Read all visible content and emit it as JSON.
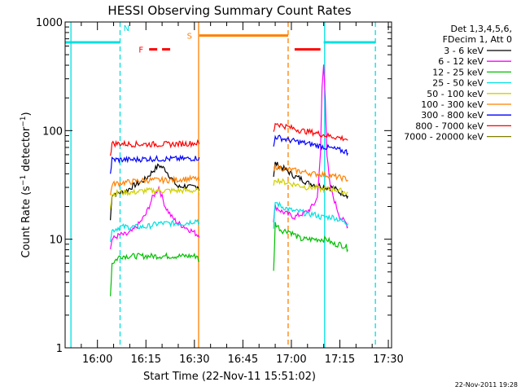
{
  "chart_data": {
    "type": "line",
    "title": "HESSI Observing Summary Count Rates",
    "xlabel": "Start Time (22-Nov-11 15:51:02)",
    "ylabel": "Count Rate (s⁻¹ detector⁻¹)",
    "ylabel_main": "Count Rate (s",
    "ylabel_sup1": "−1",
    "ylabel_mid": " detector",
    "ylabel_sup2": "−1",
    "ylabel_end": ")",
    "yscale": "log",
    "ylim": [
      1,
      1000
    ],
    "xlim_minutes": [
      -1,
      100
    ],
    "x_ticks": [
      {
        "m": 9,
        "label": "16:00"
      },
      {
        "m": 24,
        "label": "16:15"
      },
      {
        "m": 39,
        "label": "16:30"
      },
      {
        "m": 54,
        "label": "16:45"
      },
      {
        "m": 69,
        "label": "17:00"
      },
      {
        "m": 84,
        "label": "17:15"
      },
      {
        "m": 99,
        "label": "17:30"
      }
    ],
    "y_ticks": [
      {
        "v": 1,
        "label": "1"
      },
      {
        "v": 10,
        "label": "10"
      },
      {
        "v": 100,
        "label": "100"
      },
      {
        "v": 1000,
        "label": "1000"
      }
    ],
    "legend_position": "right",
    "legend_header": [
      "Det 1,3,4,5,6,",
      "FDecim 1, Att 0"
    ],
    "series": [
      {
        "name": "3 - 6 keV",
        "color": "#000000",
        "x": [
          13,
          13.5,
          16,
          18,
          20,
          22,
          24,
          26,
          28,
          30,
          32,
          34,
          36,
          38,
          40,
          40.5,
          63.5,
          64,
          66,
          68,
          70,
          72,
          74,
          76,
          78,
          80,
          82,
          84,
          86,
          86.5
        ],
        "y": [
          15,
          26,
          27,
          28,
          31,
          33,
          36,
          42,
          48,
          44,
          36,
          30,
          31,
          30,
          31,
          29,
          38,
          50,
          46,
          42,
          38,
          36,
          33,
          32,
          31,
          30,
          30,
          27,
          26,
          25
        ]
      },
      {
        "name": "6 - 12 keV",
        "color": "#ff00ff",
        "x": [
          13,
          13.5,
          16,
          18,
          20,
          22,
          24,
          26,
          28,
          30,
          32,
          34,
          36,
          38,
          40,
          40.5,
          63.5,
          64,
          66,
          68,
          70,
          72,
          74,
          76,
          77,
          78,
          78.5,
          79,
          79.5,
          80,
          81,
          84,
          86,
          86.5
        ],
        "y": [
          8,
          10,
          11,
          11,
          12,
          14,
          17,
          24,
          30,
          20,
          16,
          14,
          13,
          12,
          11,
          11,
          15,
          20,
          18,
          17,
          16,
          17,
          18,
          21,
          24,
          60,
          250,
          400,
          200,
          60,
          30,
          16,
          14,
          13
        ]
      },
      {
        "name": "12 - 25 keV",
        "color": "#00c000",
        "x": [
          13,
          13.5,
          16,
          20,
          24,
          28,
          32,
          36,
          40,
          40.5,
          63.5,
          64,
          66,
          68,
          70,
          72,
          74,
          76,
          78,
          80,
          82,
          84,
          86,
          86.5
        ],
        "y": [
          3,
          6,
          7,
          7,
          7,
          7,
          7,
          7,
          7,
          6,
          5,
          14,
          12,
          12,
          11,
          10,
          10,
          10,
          10,
          10,
          9,
          9,
          8.5,
          8
        ]
      },
      {
        "name": "25 - 50 keV",
        "color": "#00e0e0",
        "x": [
          13,
          13.5,
          16,
          20,
          24,
          28,
          32,
          36,
          40,
          40.5,
          63.5,
          64,
          66,
          68,
          70,
          72,
          74,
          76,
          78,
          80,
          82,
          84,
          86,
          86.5
        ],
        "y": [
          10,
          12,
          13,
          13,
          13,
          14,
          14,
          14,
          15,
          14,
          12,
          22,
          20,
          19,
          18,
          18,
          17,
          17,
          16,
          16,
          16,
          15,
          14,
          14
        ]
      },
      {
        "name": "50 - 100 keV",
        "color": "#d0d000",
        "x": [
          13,
          13.5,
          16,
          20,
          24,
          28,
          32,
          36,
          40,
          40.5,
          63.5,
          64,
          66,
          68,
          70,
          72,
          74,
          76,
          78,
          80,
          82,
          84,
          86,
          86.5
        ],
        "y": [
          20,
          26,
          27,
          27,
          28,
          28,
          28,
          28,
          28,
          27,
          30,
          36,
          34,
          33,
          32,
          31,
          30,
          30,
          29,
          29,
          29,
          28,
          27,
          27
        ]
      },
      {
        "name": "100 - 300 keV",
        "color": "#ff8000",
        "x": [
          13,
          13.5,
          16,
          20,
          24,
          28,
          32,
          36,
          40,
          40.5,
          63.5,
          64,
          66,
          68,
          70,
          72,
          74,
          76,
          78,
          80,
          82,
          84,
          86,
          86.5
        ],
        "y": [
          25,
          32,
          33,
          34,
          35,
          35,
          35,
          36,
          36,
          35,
          40,
          47,
          45,
          44,
          43,
          42,
          41,
          40,
          40,
          39,
          38,
          37,
          36,
          35
        ]
      },
      {
        "name": "300 - 800 keV",
        "color": "#0000ff",
        "x": [
          13,
          13.5,
          16,
          20,
          24,
          28,
          32,
          36,
          40,
          40.5,
          63.5,
          64,
          66,
          68,
          70,
          72,
          74,
          76,
          78,
          80,
          82,
          84,
          86,
          86.5
        ],
        "y": [
          40,
          54,
          54,
          54,
          55,
          55,
          55,
          55,
          56,
          55,
          70,
          88,
          85,
          82,
          80,
          78,
          76,
          74,
          72,
          70,
          68,
          66,
          64,
          62
        ]
      },
      {
        "name": "800 - 7000 keV",
        "color": "#ff0000",
        "x": [
          13,
          13.5,
          16,
          20,
          24,
          28,
          32,
          36,
          40,
          40.5,
          63.5,
          64,
          66,
          68,
          70,
          72,
          74,
          76,
          78,
          80,
          82,
          84,
          86,
          86.5
        ],
        "y": [
          60,
          76,
          76,
          75,
          75,
          75,
          75,
          76,
          77,
          76,
          95,
          118,
          112,
          108,
          104,
          100,
          98,
          96,
          93,
          90,
          88,
          86,
          84,
          82
        ]
      },
      {
        "name": "7000 - 20000 keV",
        "color": "#808000",
        "x": [],
        "y": []
      }
    ],
    "flags": [
      {
        "label": "N",
        "color": "#00e0e0",
        "y": 650,
        "segments": [
          [
            -1,
            16
          ]
        ],
        "label_at": 18.5,
        "label_offset": [
          -2,
          -14
        ]
      },
      {
        "label": "F",
        "color": "#ff0000",
        "y": 560,
        "segments": [
          [
            25,
            27.5
          ],
          [
            29,
            31.5
          ]
        ],
        "label_at": 22.5,
        "label_offset": [
          0,
          4
        ]
      },
      {
        "label": "S",
        "color": "#ff8000",
        "y": 750,
        "segments": [
          [
            40.5,
            68
          ]
        ],
        "label_at": 37.5,
        "label_offset": [
          0,
          4
        ]
      },
      {
        "red_bar": true,
        "color": "#ff0000",
        "y": 560,
        "segments": [
          [
            70,
            78
          ]
        ]
      },
      {
        "color": "#00e0e0",
        "y": 650,
        "segments": [
          [
            79,
            81
          ]
        ]
      },
      {
        "color": "#00e0e0",
        "y": 650,
        "segments": [
          [
            81,
            95
          ]
        ]
      }
    ],
    "vertical_lines": [
      {
        "m": 0.8,
        "color": "#00e0e0",
        "style": "solid"
      },
      {
        "m": 16,
        "color": "#00e0e0",
        "style": "dashed"
      },
      {
        "m": 40.3,
        "color": "#ff8000",
        "style": "solid"
      },
      {
        "m": 68,
        "color": "#ff8000",
        "style": "dashed"
      },
      {
        "m": 79.3,
        "color": "#00e0e0",
        "style": "solid"
      },
      {
        "m": 95,
        "color": "#00e0e0",
        "style": "dashed"
      }
    ],
    "footer_date": "22-Nov-2011 19:28"
  }
}
